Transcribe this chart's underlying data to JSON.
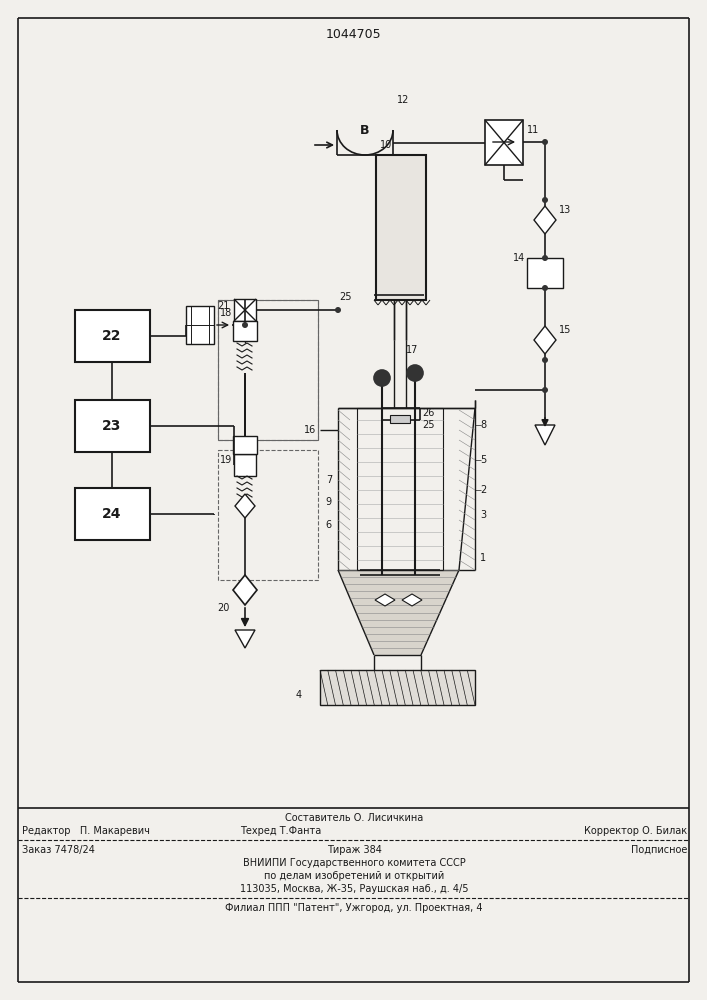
{
  "title_number": "1044705",
  "bg_color": "#f2f0ec",
  "line_color": "#1a1a1a",
  "footer_sestavitel": "Составитель О. Лисичкина",
  "footer_redaktor": "Редактор   П. Макаревич",
  "footer_tehred": "Техред Т.Фанта",
  "footer_korrektor": "Корректор О. Билак",
  "footer_zakaz": "Заказ 7478/24",
  "footer_tirazh": "Тираж 384",
  "footer_podpisnoe": "Подписное",
  "footer_vniip1": "ВНИИПИ Государственного комитета СССР",
  "footer_vniip2": "по делам изобретений и открытий",
  "footer_vniip3": "113035, Москва, Ж-35, Раушская наб., д. 4/5",
  "footer_filial": "Филиал ППП \"Патент\", Ужгород, ул. Проектная, 4"
}
